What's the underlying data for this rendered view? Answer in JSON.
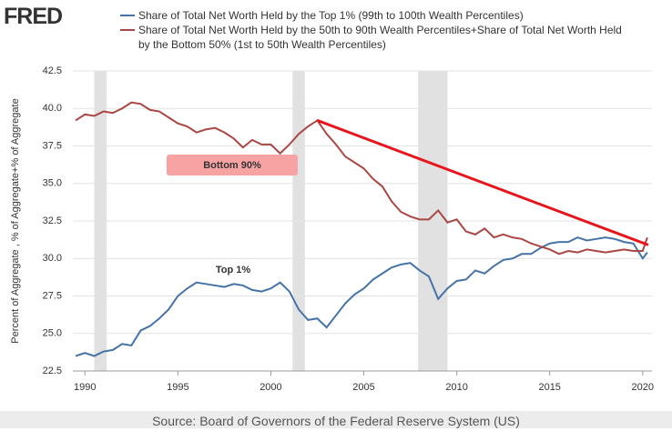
{
  "chart_data": {
    "type": "line",
    "logo": "FRED",
    "ylabel": "Percent of Aggregate , % of Aggregate+% of Aggregate",
    "source": "Source: Board of Governors of the Federal Reserve System (US)",
    "x": [
      1989.5,
      1990,
      1990.5,
      1991,
      1991.5,
      1992,
      1992.5,
      1993,
      1993.5,
      1994,
      1994.5,
      1995,
      1995.5,
      1996,
      1996.5,
      1997,
      1997.5,
      1998,
      1998.5,
      1999,
      1999.5,
      2000,
      2000.5,
      2001,
      2001.5,
      2002,
      2002.5,
      2003,
      2003.5,
      2004,
      2004.5,
      2005,
      2005.5,
      2006,
      2006.5,
      2007,
      2007.5,
      2008,
      2008.5,
      2009,
      2009.5,
      2010,
      2010.5,
      2011,
      2011.5,
      2012,
      2012.5,
      2013,
      2013.5,
      2014,
      2014.5,
      2015,
      2015.5,
      2016,
      2016.5,
      2017,
      2017.5,
      2018,
      2018.5,
      2019,
      2019.5,
      2020,
      2020.25
    ],
    "series": [
      {
        "name": "Share of Total Net Worth Held by the Top 1% (99th to 100th Wealth Percentiles)",
        "color": "#4572a7",
        "values": [
          23.5,
          23.7,
          23.5,
          23.8,
          23.9,
          24.3,
          24.2,
          25.2,
          25.5,
          26.0,
          26.6,
          27.5,
          28.0,
          28.4,
          28.3,
          28.2,
          28.1,
          28.3,
          28.2,
          27.9,
          27.8,
          28.0,
          28.4,
          27.8,
          26.6,
          25.9,
          26.0,
          25.4,
          26.2,
          27.0,
          27.6,
          28.0,
          28.6,
          29.0,
          29.4,
          29.6,
          29.7,
          29.2,
          28.8,
          27.3,
          28.0,
          28.5,
          28.6,
          29.2,
          29.0,
          29.5,
          29.9,
          30.0,
          30.3,
          30.3,
          30.7,
          31.0,
          31.1,
          31.1,
          31.4,
          31.2,
          31.3,
          31.4,
          31.3,
          31.1,
          31.0,
          30.0,
          30.4
        ]
      },
      {
        "name": "Share of Total Net Worth Held by the 50th to 90th Wealth Percentiles+Share of Total Net Worth Held by the Bottom 50% (1st to 50th Wealth Percentiles)",
        "color": "#aa4643",
        "values": [
          39.2,
          39.6,
          39.5,
          39.8,
          39.7,
          40.0,
          40.4,
          40.3,
          39.9,
          39.8,
          39.4,
          39.0,
          38.8,
          38.4,
          38.6,
          38.7,
          38.4,
          38.0,
          37.4,
          37.9,
          37.6,
          37.6,
          37.0,
          37.6,
          38.3,
          38.8,
          39.2,
          38.3,
          37.6,
          36.8,
          36.4,
          36.0,
          35.3,
          34.8,
          33.8,
          33.1,
          32.8,
          32.6,
          32.6,
          33.2,
          32.4,
          32.6,
          31.8,
          31.6,
          32.0,
          31.4,
          31.6,
          31.4,
          31.3,
          31.0,
          30.8,
          30.6,
          30.3,
          30.5,
          30.4,
          30.6,
          30.5,
          30.4,
          30.5,
          30.6,
          30.5,
          30.5,
          31.4
        ]
      }
    ],
    "recessions": [
      [
        1990.5,
        1991.17
      ],
      [
        2001.17,
        2001.83
      ],
      [
        2007.92,
        2009.5
      ]
    ],
    "recession_color": "#e1e1e1",
    "xlim": [
      1989.35,
      2020.5
    ],
    "ylim": [
      22.5,
      42.5
    ],
    "xticks": [
      1990,
      1995,
      2000,
      2005,
      2010,
      2015,
      2020
    ],
    "yticks": [
      22.5,
      {
        "value": 25,
        "label": "25.0"
      },
      27.5,
      {
        "value": 30,
        "label": "30.0"
      },
      32.5,
      {
        "value": 35,
        "label": "35.0"
      },
      37.5,
      {
        "value": 40,
        "label": "40.0"
      },
      42.5
    ],
    "grid": true,
    "annotations": [
      {
        "text": "Bottom 90%",
        "color": "#b0302c",
        "highlight": "#f7a3a3"
      },
      {
        "text": "Top 1%",
        "color": "#4f7fb0"
      }
    ],
    "trend_line": {
      "x": [
        2002.5,
        2020.3
      ],
      "values": [
        39.2,
        30.9
      ],
      "color": "#e8141b"
    }
  }
}
